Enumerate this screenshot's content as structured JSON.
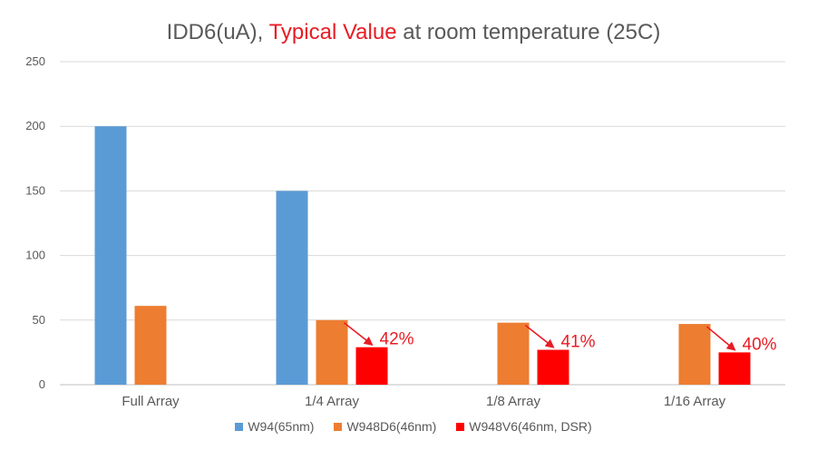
{
  "chart_data": {
    "type": "bar",
    "title_parts": {
      "before": "IDD6(uA), ",
      "highlight": "Typical Value",
      "after": " at room temperature (25C)"
    },
    "xlabel": "",
    "ylabel": "",
    "categories": [
      "Full Array",
      "1/4 Array",
      "1/8 Array",
      "1/16 Array"
    ],
    "ylim": [
      0,
      250
    ],
    "yticks": [
      0,
      50,
      100,
      150,
      200,
      250
    ],
    "grid": true,
    "legend_position": "bottom",
    "series": [
      {
        "name": "W94(65nm)",
        "color": "#5b9bd5",
        "values": [
          200,
          150,
          null,
          null
        ]
      },
      {
        "name": "W948D6(46nm)",
        "color": "#ed7d31",
        "values": [
          61,
          50,
          48,
          47
        ]
      },
      {
        "name": "W948V6(46nm, DSR)",
        "color": "#ff0000",
        "values": [
          null,
          29,
          27,
          25
        ]
      }
    ],
    "annotations": [
      {
        "category": "1/4 Array",
        "text": "42%"
      },
      {
        "category": "1/8 Array",
        "text": "41%"
      },
      {
        "category": "1/16 Array",
        "text": "40%"
      }
    ],
    "annotation_color": "#e81c24"
  }
}
